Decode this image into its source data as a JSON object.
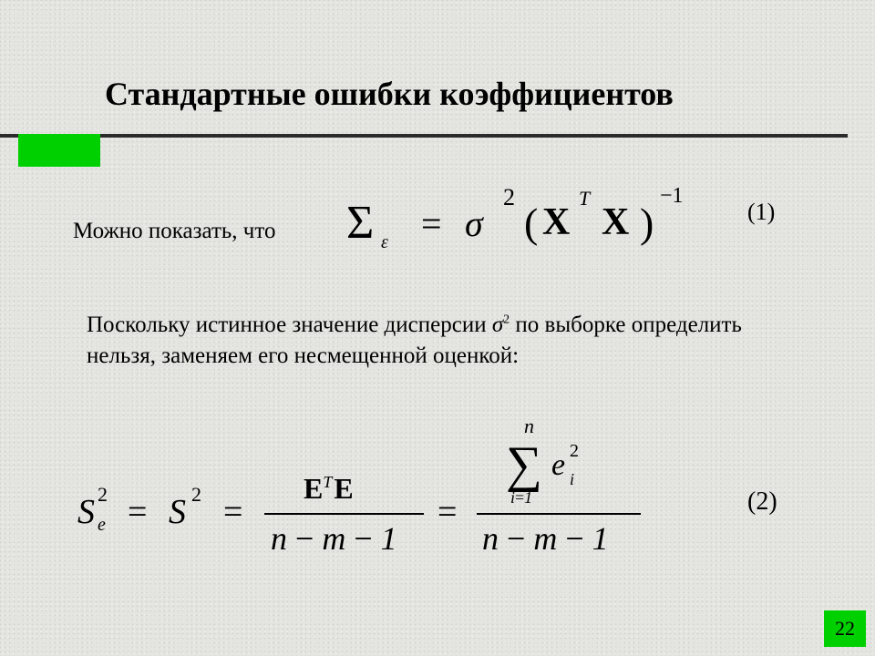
{
  "title": "Стандартные ошибки коэффициентов",
  "accent_color": "#00d000",
  "rule_color": "#2b2b2b",
  "background_color": "#e4e4e0",
  "lead_text": "Можно показать, что",
  "eq1": {
    "label": "(1)",
    "Sigma": "Σ",
    "Sigma_sub": "ε",
    "eqsign": "=",
    "sigma": "σ",
    "sigma_sup": "2",
    "lparen": "(",
    "X1": "X",
    "X1_sup": "T",
    "X2": "X",
    "rparen": ")",
    "inv_sup": "−1"
  },
  "mid_text_before": "Поскольку истинное значение дисперсии ",
  "mid_sigma": "σ",
  "mid_sigma_sup": "2",
  "mid_text_after": " по выборке определить нельзя, заменяем его несмещенной оценкой:",
  "eq2": {
    "label": "(2)",
    "S1": "S",
    "S1_sub": "e",
    "S1_sup": "2",
    "eqA": "=",
    "S2": "S",
    "S2_sup": "2",
    "eqB": "=",
    "frac1_num_E1": "E",
    "frac1_num_T": "T",
    "frac1_num_E2": "E",
    "frac_den_n": "n",
    "frac_den_m": "m",
    "frac_den_one": "1",
    "minus": "−",
    "eqC": "=",
    "sum_upper": "n",
    "sum_sym": "∑",
    "sum_lower_i": "i",
    "sum_lower_eq": "=",
    "sum_lower_1": "1",
    "e_term": "e",
    "e_sub": "i",
    "e_sup": "2"
  },
  "page_number": "22"
}
